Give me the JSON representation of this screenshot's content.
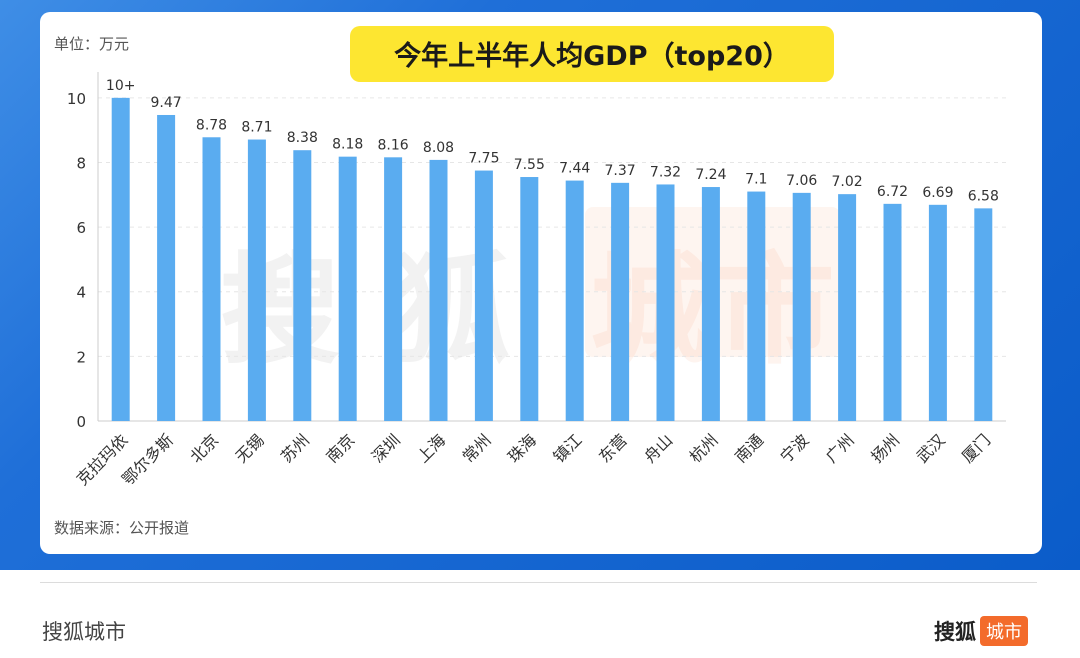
{
  "footer": {
    "brand_text": "搜狐城市",
    "logo_main": "搜狐",
    "logo_tag": "城市"
  },
  "chart_data": {
    "type": "bar",
    "title": "今年上半年人均GDP（top20）",
    "unit_note": "单位：万元",
    "source_note": "数据来源：公开报道",
    "watermark": "搜狐城市",
    "categories": [
      "克拉玛依",
      "鄂尔多斯",
      "北京",
      "无锡",
      "苏州",
      "南京",
      "深圳",
      "上海",
      "常州",
      "珠海",
      "镇江",
      "东营",
      "舟山",
      "杭州",
      "南通",
      "宁波",
      "广州",
      "扬州",
      "武汉",
      "厦门"
    ],
    "values": [
      10,
      9.47,
      8.78,
      8.71,
      8.38,
      8.18,
      8.16,
      8.08,
      7.75,
      7.55,
      7.44,
      7.37,
      7.32,
      7.24,
      7.1,
      7.06,
      7.02,
      6.72,
      6.69,
      6.58
    ],
    "data_labels": [
      "10+",
      "9.47",
      "8.78",
      "8.71",
      "8.38",
      "8.18",
      "8.16",
      "8.08",
      "7.75",
      "7.55",
      "7.44",
      "7.37",
      "7.32",
      "7.24",
      "7.1",
      "7.06",
      "7.02",
      "6.72",
      "6.69",
      "6.58"
    ],
    "yticks": [
      0,
      2,
      4,
      6,
      8,
      10
    ],
    "ylim": [
      0,
      10.8
    ],
    "xlabel": "",
    "ylabel": "",
    "grid": true,
    "bar_color": "#5aacf0",
    "title_bg_color": "#fde631"
  }
}
